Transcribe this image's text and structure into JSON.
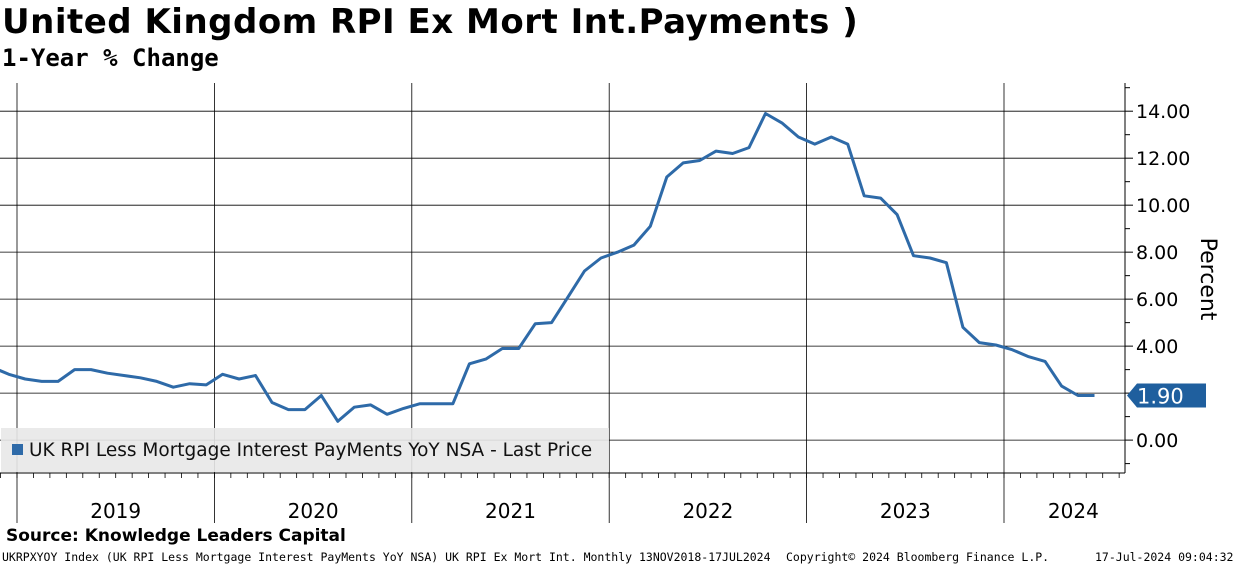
{
  "title": "United Kingdom RPI Ex Mort Int.Payments )",
  "subtitle": "1-Year % Change",
  "source": "Source: Knowledge Leaders Capital",
  "footer": {
    "left": "UKRPXYOY Index (UK RPI Less Mortgage Interest PayMents YoY NSA) UK RPI Ex Mort Int.  Monthly 13NOV2018-17JUL2024",
    "copyright": "Copyright© 2024 Bloomberg Finance L.P.",
    "timestamp": "17-Jul-2024 09:04:32"
  },
  "colors": {
    "line": "#2e6aa8",
    "grid": "#000000",
    "legend_bg": "#e8e8e8",
    "label_bg": "#1f5f9e"
  },
  "chart_data": {
    "type": "line",
    "ylabel": "Percent",
    "ylim": [
      -1.4,
      15.2
    ],
    "y_ticks": [
      "0.00",
      "2.00",
      "4.00",
      "6.00",
      "8.00",
      "10.00",
      "12.00",
      "14.00"
    ],
    "x_labels": [
      "2019",
      "2020",
      "2021",
      "2022",
      "2023",
      "2024"
    ],
    "legend": "UK RPI Less Mortgage Interest PayMents YoY NSA - Last Price",
    "last_value_label": "1.90",
    "grid": true,
    "legend_position": "bottom-left",
    "series": [
      {
        "x": [
          "2018-11",
          "2018-12",
          "2019-01",
          "2019-02",
          "2019-03",
          "2019-04",
          "2019-05",
          "2019-06",
          "2019-07",
          "2019-08",
          "2019-09",
          "2019-10",
          "2019-11",
          "2019-12",
          "2020-01",
          "2020-02",
          "2020-03",
          "2020-04",
          "2020-05",
          "2020-06",
          "2020-07",
          "2020-08",
          "2020-09",
          "2020-10",
          "2020-11",
          "2020-12",
          "2021-01",
          "2021-02",
          "2021-03",
          "2021-04",
          "2021-05",
          "2021-06",
          "2021-07",
          "2021-08",
          "2021-09",
          "2021-10",
          "2021-11",
          "2021-12",
          "2022-01",
          "2022-02",
          "2022-03",
          "2022-04",
          "2022-05",
          "2022-06",
          "2022-07",
          "2022-08",
          "2022-09",
          "2022-10",
          "2022-11",
          "2022-12",
          "2023-01",
          "2023-02",
          "2023-03",
          "2023-04",
          "2023-05",
          "2023-06",
          "2023-07",
          "2023-08",
          "2023-09",
          "2023-10",
          "2023-11",
          "2023-12",
          "2024-01",
          "2024-02",
          "2024-03",
          "2024-04",
          "2024-05",
          "2024-06"
        ],
        "values": [
          3.1,
          2.8,
          2.6,
          2.5,
          2.5,
          3.0,
          3.0,
          2.85,
          2.75,
          2.65,
          2.5,
          2.25,
          2.4,
          2.35,
          2.8,
          2.6,
          2.75,
          1.6,
          1.3,
          1.3,
          1.9,
          0.8,
          1.4,
          1.5,
          1.1,
          1.35,
          1.55,
          1.55,
          1.55,
          3.25,
          3.45,
          3.9,
          3.9,
          4.95,
          5.0,
          6.1,
          7.2,
          7.75,
          8.0,
          8.3,
          9.1,
          11.2,
          11.8,
          11.9,
          12.3,
          12.2,
          12.45,
          13.9,
          13.5,
          12.9,
          12.6,
          12.9,
          12.6,
          10.4,
          10.3,
          9.6,
          7.85,
          7.75,
          7.55,
          4.8,
          4.15,
          4.05,
          3.85,
          3.55,
          3.35,
          2.3,
          1.9,
          1.9
        ]
      }
    ]
  }
}
